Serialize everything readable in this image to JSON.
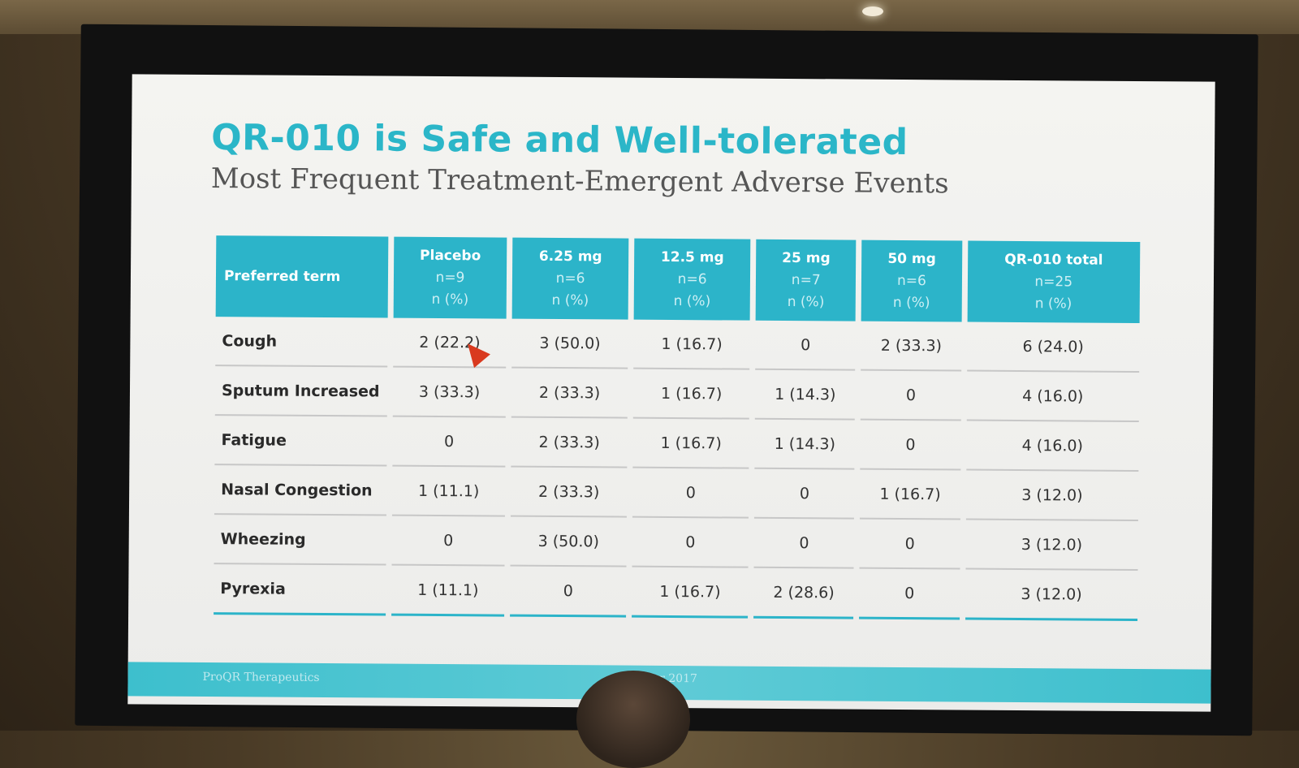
{
  "slide": {
    "title": "QR-010 is Safe and Well-tolerated",
    "subtitle": "Most Frequent Treatment-Emergent Adverse Events"
  },
  "table": {
    "term_header": "Preferred term",
    "groups": [
      {
        "name": "Placebo",
        "n": "n=9",
        "unit": "n (%)"
      },
      {
        "name": "6.25 mg",
        "n": "n=6",
        "unit": "n (%)"
      },
      {
        "name": "12.5 mg",
        "n": "n=6",
        "unit": "n (%)"
      },
      {
        "name": "25 mg",
        "n": "n=7",
        "unit": "n (%)"
      },
      {
        "name": "50 mg",
        "n": "n=6",
        "unit": "n (%)"
      },
      {
        "name": "QR-010 total",
        "n": "n=25",
        "unit": "n (%)"
      }
    ],
    "rows": [
      {
        "term": "Cough",
        "values": [
          "2 (22.2)",
          "3 (50.0)",
          "1 (16.7)",
          "0",
          "2 (33.3)",
          "6 (24.0)"
        ]
      },
      {
        "term": "Sputum Increased",
        "values": [
          "3 (33.3)",
          "2 (33.3)",
          "1 (16.7)",
          "1 (14.3)",
          "0",
          "4 (16.0)"
        ]
      },
      {
        "term": "Fatigue",
        "values": [
          "0",
          "2 (33.3)",
          "1 (16.7)",
          "1 (14.3)",
          "0",
          "4 (16.0)"
        ]
      },
      {
        "term": "Nasal Congestion",
        "values": [
          "1 (11.1)",
          "2 (33.3)",
          "0",
          "0",
          "1 (16.7)",
          "3 (12.0)"
        ]
      },
      {
        "term": "Wheezing",
        "values": [
          "0",
          "3 (50.0)",
          "0",
          "0",
          "0",
          "3 (12.0)"
        ]
      },
      {
        "term": "Pyrexia",
        "values": [
          "1 (11.1)",
          "0",
          "1 (16.7)",
          "2 (28.6)",
          "0",
          "3 (12.0)"
        ]
      }
    ]
  },
  "footer": {
    "left": "ProQR Therapeutics",
    "center": "... ember 2017"
  },
  "colors": {
    "accent": "#2cb4c9",
    "title": "#2bb6c8",
    "slide_bg": "#f0f0ee",
    "cursor": "#d93a1f"
  }
}
